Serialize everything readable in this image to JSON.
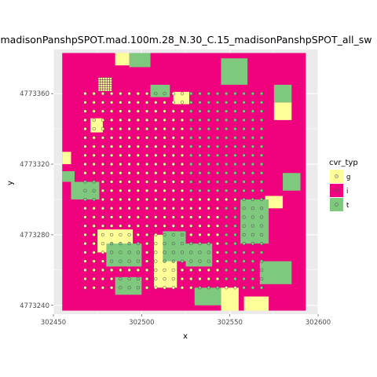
{
  "chart_data": {
    "type": "scatter",
    "title": "madisonPanshpSPOT.mad.100m.28_N.30_C.15_madisonPanshpSPOT_all_sw",
    "xlabel": "x",
    "ylabel": "y",
    "xlim": [
      302450,
      302600
    ],
    "ylim": [
      4773235,
      4773385
    ],
    "x_ticks": [
      302450,
      302500,
      302550,
      302600
    ],
    "x_tick_labels": [
      "302450",
      "302500",
      "302550",
      "302600"
    ],
    "y_ticks": [
      4773240,
      4773280,
      4773320,
      4773360
    ],
    "y_tick_labels": [
      "4773240",
      "4773280",
      "4773320",
      "4773360"
    ],
    "grid": true,
    "legend": {
      "title": "cvr_typ",
      "placement": "right",
      "entries": [
        {
          "label": "g",
          "fill": "#ffff99",
          "point": "#e6e699"
        },
        {
          "label": "i",
          "fill": "#f0027f",
          "point": "#f0027f"
        },
        {
          "label": "t",
          "fill": "#7fc97f",
          "point": "#7fc97f"
        }
      ]
    },
    "raster_extent": {
      "x": [
        302455,
        302593
      ],
      "y": [
        4773237,
        4773383
      ]
    },
    "point_grid": {
      "x_start": 302468,
      "x_step": 5,
      "x_count": 21,
      "y_start": 4773250,
      "y_step": 5,
      "y_count": 23
    },
    "dense_block": {
      "x_start": 302476,
      "x_step": 1.3,
      "x_count": 6,
      "y_start": 4773362,
      "y_step": 1.3,
      "y_count": 6
    },
    "patches_g": [
      {
        "x": [
          302455,
          302460
        ],
        "y": [
          4773320,
          4773327
        ]
      },
      {
        "x": [
          302471,
          302478
        ],
        "y": [
          4773338,
          4773346
        ]
      },
      {
        "x": [
          302475,
          302495
        ],
        "y": [
          4773270,
          4773283
        ]
      },
      {
        "x": [
          302507,
          302520
        ],
        "y": [
          4773250,
          4773280
        ]
      },
      {
        "x": [
          302518,
          302527
        ],
        "y": [
          4773354,
          4773361
        ]
      },
      {
        "x": [
          302545,
          302555
        ],
        "y": [
          4773237,
          4773250
        ]
      },
      {
        "x": [
          302558,
          302572
        ],
        "y": [
          4773237,
          4773245
        ]
      },
      {
        "x": [
          302570,
          302580
        ],
        "y": [
          4773295,
          4773302
        ]
      },
      {
        "x": [
          302575,
          302585
        ],
        "y": [
          4773345,
          4773355
        ]
      },
      {
        "x": [
          302485,
          302493
        ],
        "y": [
          4773376,
          4773383
        ]
      }
    ],
    "patches_t": [
      {
        "x": [
          302455,
          302462
        ],
        "y": [
          4773310,
          4773316
        ]
      },
      {
        "x": [
          302460,
          302476
        ],
        "y": [
          4773300,
          4773310
        ]
      },
      {
        "x": [
          302480,
          302500
        ],
        "y": [
          4773262,
          4773275
        ]
      },
      {
        "x": [
          302485,
          302500
        ],
        "y": [
          4773246,
          4773256
        ]
      },
      {
        "x": [
          302493,
          302505
        ],
        "y": [
          4773375,
          4773383
        ]
      },
      {
        "x": [
          302505,
          302516
        ],
        "y": [
          4773358,
          4773365
        ]
      },
      {
        "x": [
          302512,
          302525
        ],
        "y": [
          4773265,
          4773282
        ]
      },
      {
        "x": [
          302525,
          302540
        ],
        "y": [
          4773262,
          4773275
        ]
      },
      {
        "x": [
          302530,
          302545
        ],
        "y": [
          4773240,
          4773250
        ]
      },
      {
        "x": [
          302545,
          302560
        ],
        "y": [
          4773365,
          4773380
        ]
      },
      {
        "x": [
          302556,
          302572
        ],
        "y": [
          4773275,
          4773300
        ]
      },
      {
        "x": [
          302567,
          302585
        ],
        "y": [
          4773252,
          4773265
        ]
      },
      {
        "x": [
          302575,
          302585
        ],
        "y": [
          4773355,
          4773365
        ]
      },
      {
        "x": [
          302580,
          302590
        ],
        "y": [
          4773305,
          4773315
        ]
      }
    ]
  }
}
